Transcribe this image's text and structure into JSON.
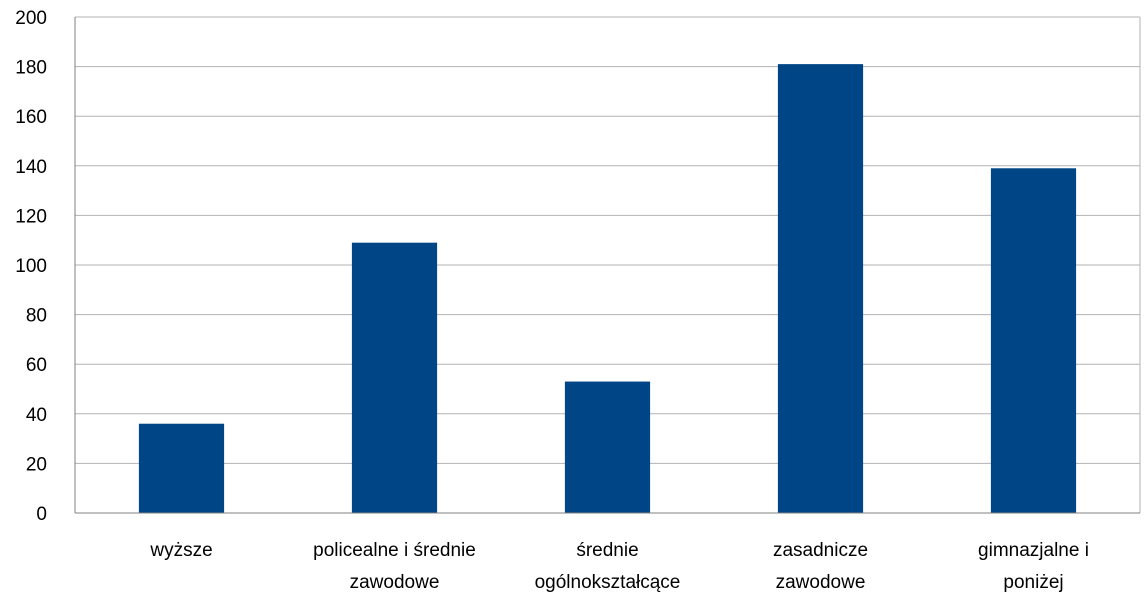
{
  "chart_data": {
    "type": "bar",
    "title": "",
    "xlabel": "",
    "ylabel": "",
    "categories": [
      [
        "wyższe"
      ],
      [
        "policealne i średnie",
        "zawodowe"
      ],
      [
        "średnie",
        "ogólnokształcące"
      ],
      [
        "zasadnicze",
        "zawodowe"
      ],
      [
        "gimnazjalne i",
        "poniżej"
      ]
    ],
    "values": [
      36,
      109,
      53,
      181,
      139
    ],
    "ylim": [
      0,
      200
    ],
    "yticks": [
      0,
      20,
      40,
      60,
      80,
      100,
      120,
      140,
      160,
      180,
      200
    ],
    "grid": true,
    "bar_color": "#004586",
    "grid_color": "#b3b3b3",
    "axis_color": "#808080"
  }
}
